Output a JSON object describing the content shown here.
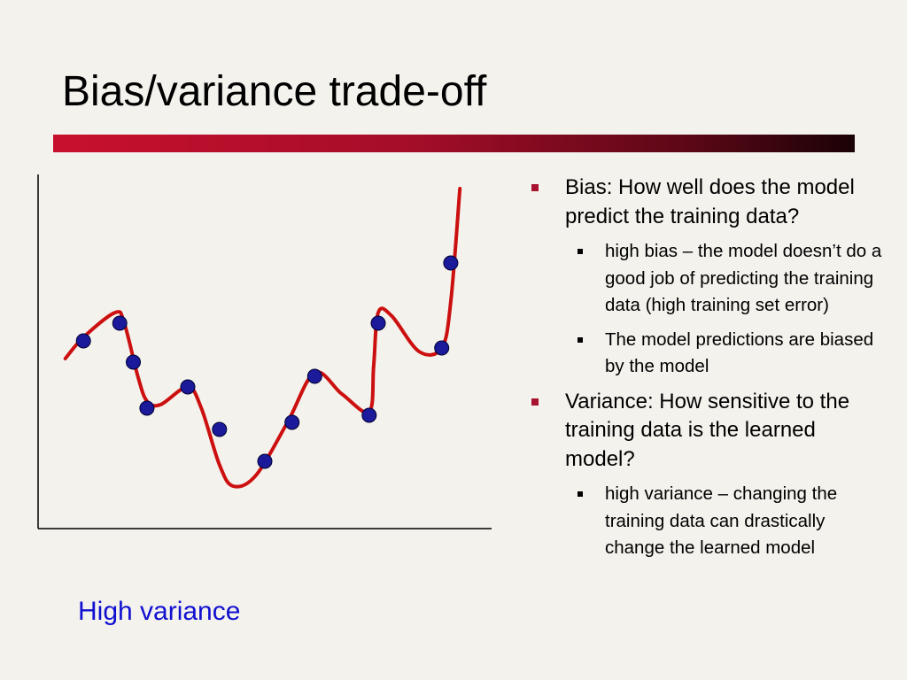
{
  "slide": {
    "title": "Bias/variance trade-off",
    "caption": "High variance"
  },
  "bullets": [
    {
      "text": "Bias: How well does the model predict the training data?",
      "sub": [
        "high bias – the model doesn’t do a good job of predicting the training data (high training set error)",
        "The model predictions are biased by the model"
      ]
    },
    {
      "text": "Variance: How sensitive to the training data is the learned model?",
      "sub": [
        "high variance – changing the training data can drastically change the learned model"
      ]
    }
  ],
  "chart_data": {
    "type": "scatter",
    "title": "",
    "xlabel": "",
    "ylabel": "",
    "xlim": [
      0,
      100
    ],
    "ylim": [
      0,
      100
    ],
    "grid": false,
    "points": [
      {
        "x": 10,
        "y": 53
      },
      {
        "x": 18,
        "y": 58
      },
      {
        "x": 21,
        "y": 47
      },
      {
        "x": 24,
        "y": 34
      },
      {
        "x": 33,
        "y": 40
      },
      {
        "x": 40,
        "y": 28
      },
      {
        "x": 50,
        "y": 19
      },
      {
        "x": 56,
        "y": 30
      },
      {
        "x": 61,
        "y": 43
      },
      {
        "x": 73,
        "y": 32
      },
      {
        "x": 75,
        "y": 58
      },
      {
        "x": 89,
        "y": 51
      },
      {
        "x": 91,
        "y": 75
      }
    ],
    "fit_curve": {
      "x": [
        6,
        10,
        17,
        19,
        22,
        24,
        27,
        33,
        36,
        40,
        43,
        48,
        55,
        61,
        67,
        73,
        74,
        75,
        78,
        84,
        89,
        91,
        93
      ],
      "y": [
        48,
        54,
        61,
        58,
        43,
        36,
        35,
        40,
        34,
        18,
        12,
        15,
        30,
        44,
        38,
        33,
        46,
        61,
        60,
        50,
        51,
        64,
        96
      ]
    },
    "colors": {
      "points": "#1a1a9a",
      "fit_curve": "#cc1010",
      "axes": "#000000"
    }
  }
}
